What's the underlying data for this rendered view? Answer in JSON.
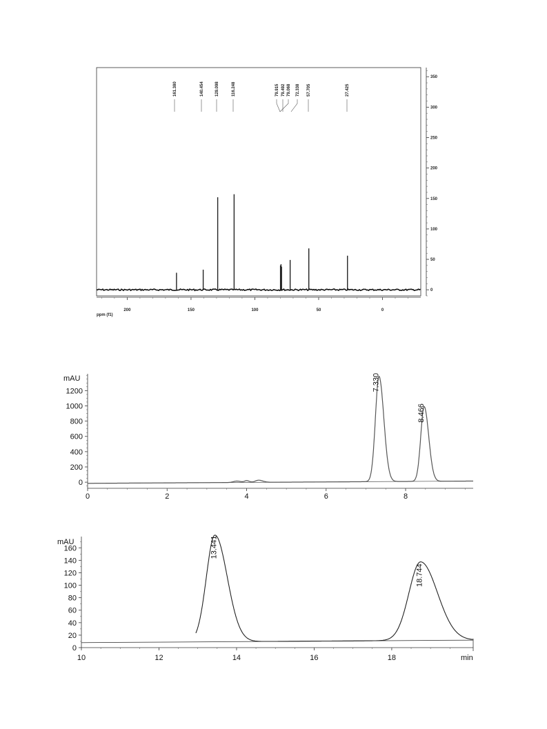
{
  "chart_data": [
    {
      "type": "line",
      "xlabel": "ppm (f1)",
      "x_ticks": [
        "200",
        "150",
        "100",
        "50",
        "0"
      ],
      "y_ticks": [
        "0",
        "50",
        "100",
        "150",
        "200",
        "250",
        "300",
        "350"
      ],
      "xlim": [
        224,
        -30
      ],
      "ylim": [
        -10,
        365
      ],
      "peak_labels": [
        "161.380",
        "140.454",
        "129.098",
        "116.248",
        "79.915",
        "79.492",
        "79.068",
        "72.338",
        "57.705",
        "27.425"
      ],
      "peaks": [
        {
          "x": 161.38,
          "y": 28
        },
        {
          "x": 140.454,
          "y": 33
        },
        {
          "x": 129.098,
          "y": 152
        },
        {
          "x": 116.248,
          "y": 157
        },
        {
          "x": 79.915,
          "y": 40
        },
        {
          "x": 79.492,
          "y": 42
        },
        {
          "x": 79.068,
          "y": 38
        },
        {
          "x": 72.338,
          "y": 49
        },
        {
          "x": 57.705,
          "y": 68
        },
        {
          "x": 27.425,
          "y": 56
        }
      ]
    },
    {
      "type": "line",
      "ylabel": "mAU",
      "x_ticks": [
        "0",
        "2",
        "4",
        "6",
        "8"
      ],
      "y_ticks": [
        "0",
        "200",
        "400",
        "600",
        "800",
        "1000",
        "1200"
      ],
      "xlim": [
        0,
        9.7
      ],
      "ylim": [
        -80,
        1420
      ],
      "peak_labels": [
        "7.330",
        "8.466"
      ],
      "peaks": [
        {
          "x": 7.33,
          "y": 1380,
          "width": 0.09
        },
        {
          "x": 8.466,
          "y": 980,
          "width": 0.085
        }
      ],
      "minor_bumps": [
        {
          "x": 3.75,
          "y": 18,
          "width": 0.08
        },
        {
          "x": 4.0,
          "y": 22,
          "width": 0.05
        },
        {
          "x": 4.3,
          "y": 28,
          "width": 0.08
        }
      ],
      "baseline": {
        "start": -15,
        "end": 15
      }
    },
    {
      "type": "line",
      "ylabel": "mAU",
      "xlabel": "min",
      "x_ticks": [
        "10",
        "12",
        "14",
        "16",
        "18"
      ],
      "y_ticks": [
        "0",
        "20",
        "40",
        "60",
        "80",
        "100",
        "120",
        "140",
        "160"
      ],
      "xlim": [
        10,
        20.1
      ],
      "ylim": [
        0,
        178
      ],
      "peak_labels": [
        "13.441",
        "18.744"
      ],
      "peaks": [
        {
          "x": 13.441,
          "y": 171,
          "width": 0.22
        },
        {
          "x": 18.744,
          "y": 126,
          "width": 0.3
        }
      ],
      "baseline": {
        "start": 8,
        "end": 12
      }
    }
  ]
}
